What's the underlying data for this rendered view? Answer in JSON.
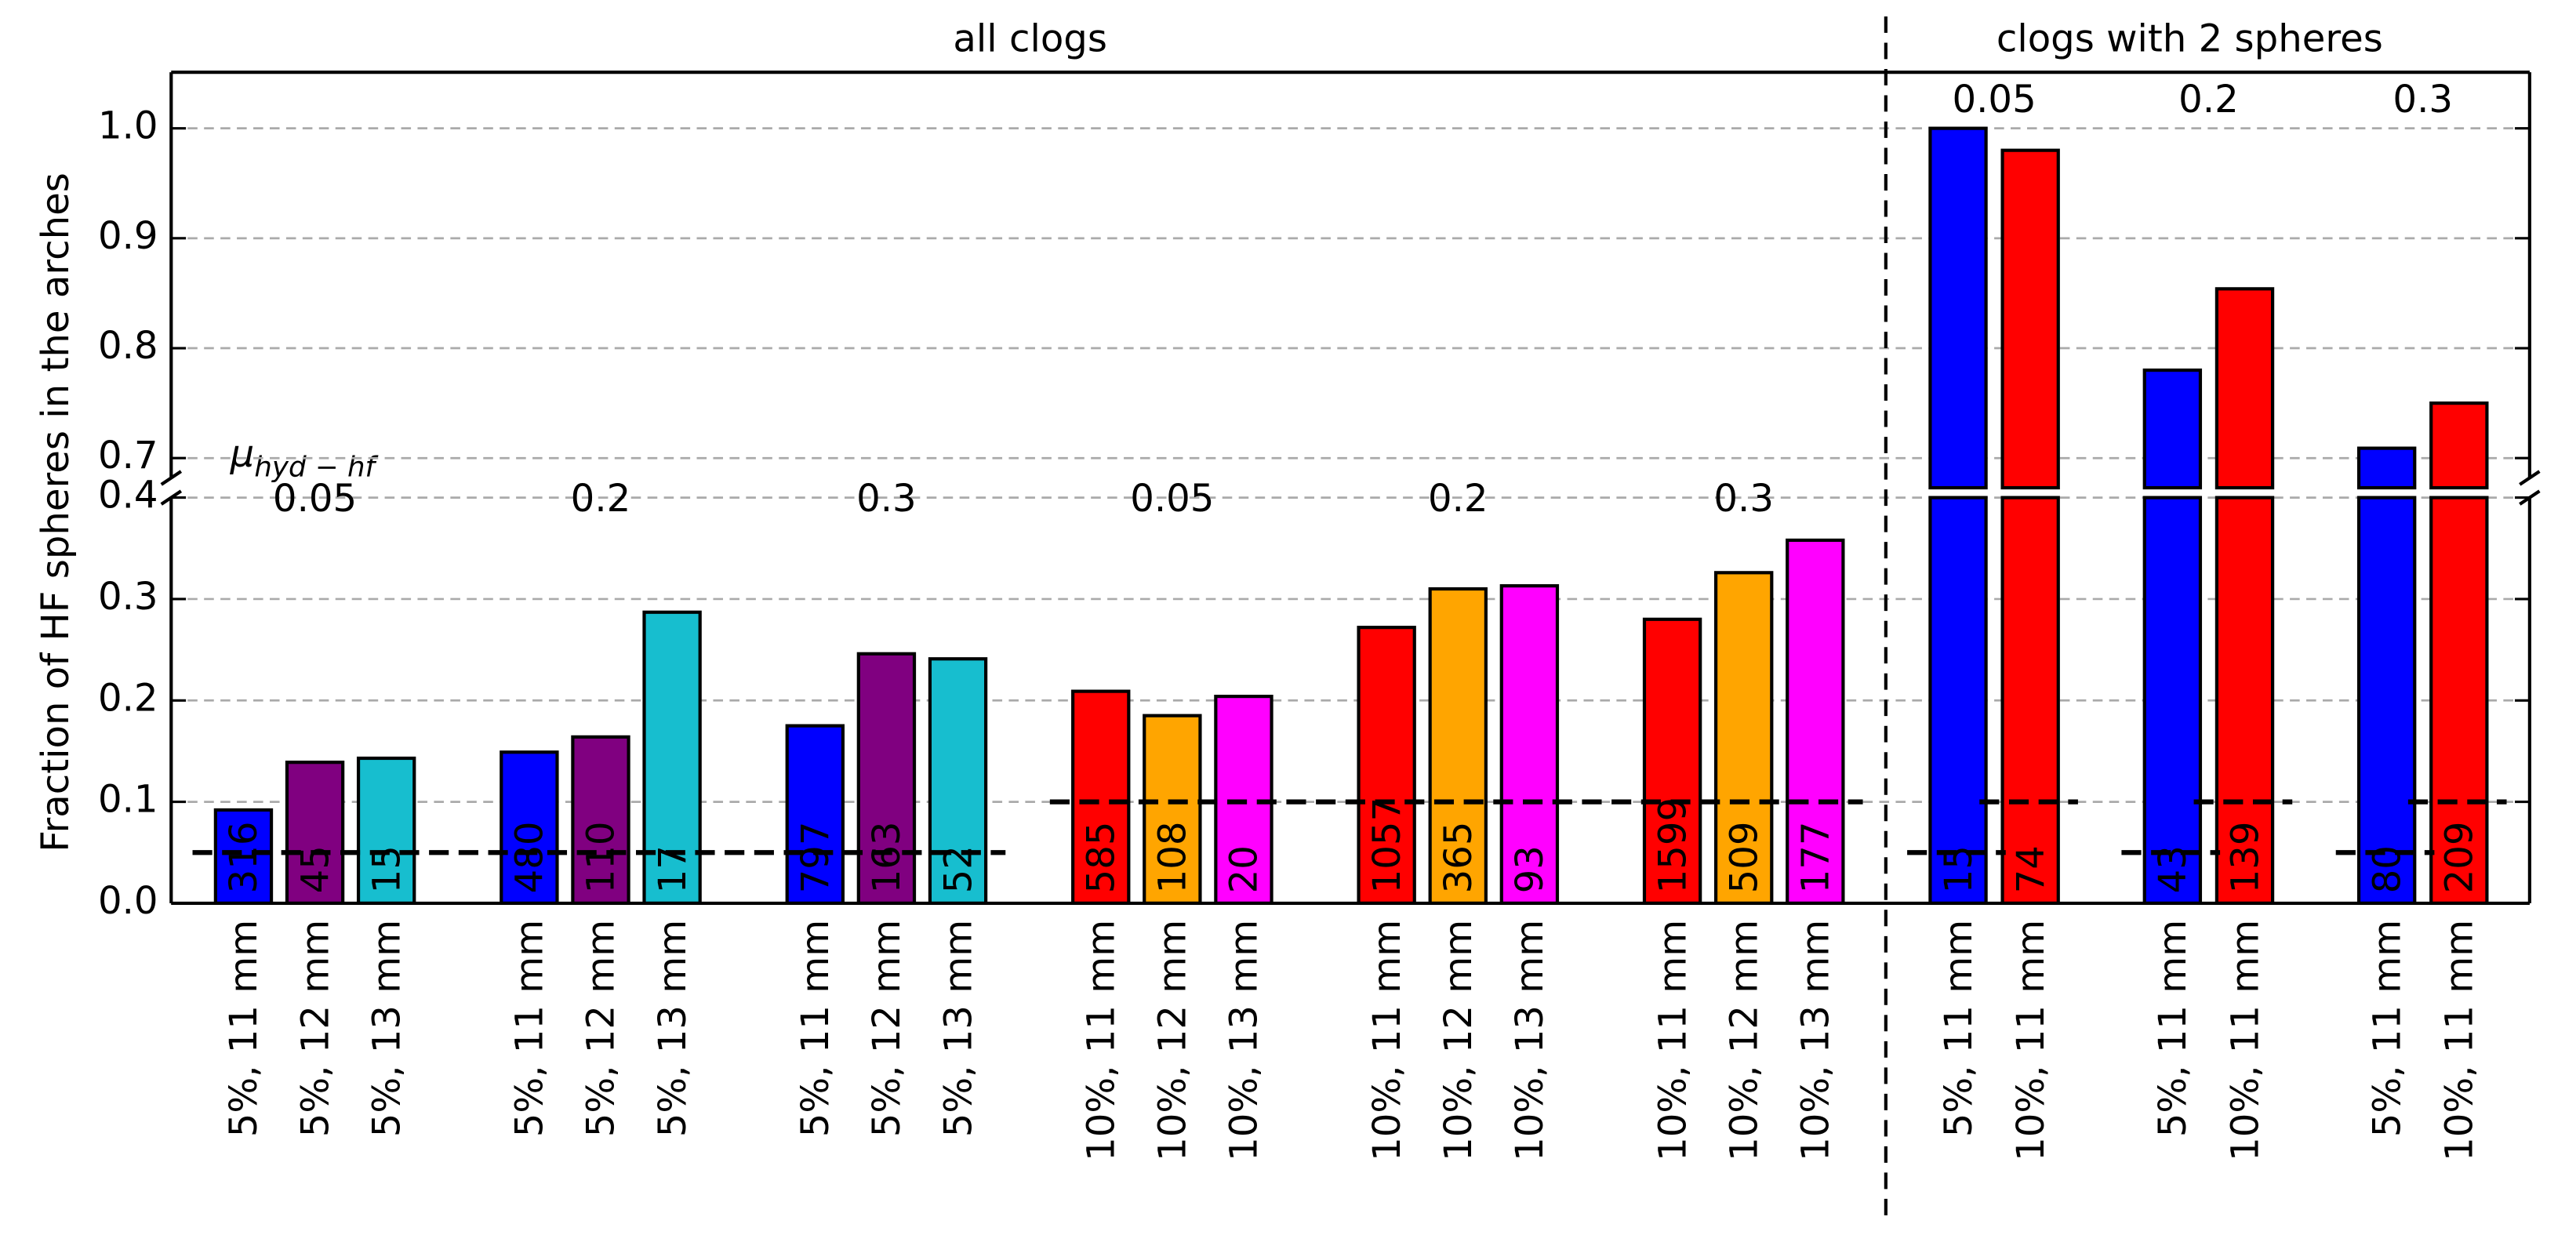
{
  "chart_data": {
    "type": "bar",
    "ylabel": "Fraction of HF spheres in the arches",
    "annotation": {
      "symbol": "μ",
      "subscript": "hyd − hf"
    },
    "ylim": [
      0,
      0.4
    ],
    "yticks": [
      {
        "value": 0,
        "label": "0.0"
      },
      0.1,
      0.2,
      0.3,
      0.4
    ],
    "ylim_upper": [
      0.682,
      1.051
    ],
    "yticks_upper": [
      0.7,
      0.8,
      0.9,
      {
        "value": 1,
        "label": "1.0"
      }
    ],
    "grid": true,
    "sections": [
      {
        "title": "all clogs",
        "groups": [
          {
            "label": "0.05",
            "categories": [
              "5%, 11 mm",
              "5%, 12 mm",
              "5%, 13 mm"
            ],
            "values": [
              0.092,
              0.139,
              0.143
            ],
            "colors": [
              "#0000ff",
              "#800080",
              "#17becf"
            ],
            "counts": [
              316,
              45,
              15
            ],
            "reference": [
              0.05,
              0.05,
              0.05
            ]
          },
          {
            "label": "0.2",
            "categories": [
              "5%, 11 mm",
              "5%, 12 mm",
              "5%, 13 mm"
            ],
            "values": [
              0.149,
              0.164,
              0.287
            ],
            "colors": [
              "#0000ff",
              "#800080",
              "#17becf"
            ],
            "counts": [
              480,
              110,
              17
            ],
            "reference": [
              0.05,
              0.05,
              0.05
            ]
          },
          {
            "label": "0.3",
            "categories": [
              "5%, 11 mm",
              "5%, 12 mm",
              "5%, 13 mm"
            ],
            "values": [
              0.175,
              0.246,
              0.241
            ],
            "colors": [
              "#0000ff",
              "#800080",
              "#17becf"
            ],
            "counts": [
              797,
              163,
              52
            ],
            "reference": [
              0.05,
              0.05,
              0.05
            ]
          },
          {
            "label": "0.05",
            "categories": [
              "10%, 11 mm",
              "10%, 12 mm",
              "10%, 13 mm"
            ],
            "values": [
              0.209,
              0.185,
              0.204
            ],
            "colors": [
              "#ff0000",
              "#ffa500",
              "#ff00ff"
            ],
            "counts": [
              585,
              108,
              20
            ],
            "reference": [
              0.1,
              0.1,
              0.1
            ]
          },
          {
            "label": "0.2",
            "categories": [
              "10%, 11 mm",
              "10%, 12 mm",
              "10%, 13 mm"
            ],
            "values": [
              0.272,
              0.31,
              0.313
            ],
            "colors": [
              "#ff0000",
              "#ffa500",
              "#ff00ff"
            ],
            "counts": [
              1057,
              365,
              93
            ],
            "reference": [
              0.1,
              0.1,
              0.1
            ]
          },
          {
            "label": "0.3",
            "categories": [
              "10%, 11 mm",
              "10%, 12 mm",
              "10%, 13 mm"
            ],
            "values": [
              0.28,
              0.326,
              0.358
            ],
            "colors": [
              "#ff0000",
              "#ffa500",
              "#ff00ff"
            ],
            "counts": [
              1599,
              509,
              177
            ],
            "reference": [
              0.1,
              0.1,
              0.1
            ]
          }
        ]
      },
      {
        "title": "clogs with 2 spheres",
        "groups": [
          {
            "label": "0.05",
            "categories": [
              "5%, 11 mm",
              "10%, 11 mm"
            ],
            "values": [
              1.0,
              0.98
            ],
            "colors": [
              "#0000ff",
              "#ff0000"
            ],
            "counts": [
              15,
              74
            ],
            "reference": [
              0.05,
              0.1
            ]
          },
          {
            "label": "0.2",
            "categories": [
              "5%, 11 mm",
              "10%, 11 mm"
            ],
            "values": [
              0.78,
              0.854
            ],
            "colors": [
              "#0000ff",
              "#ff0000"
            ],
            "counts": [
              43,
              139
            ],
            "reference": [
              0.05,
              0.1
            ]
          },
          {
            "label": "0.3",
            "categories": [
              "5%, 11 mm",
              "10%, 11 mm"
            ],
            "values": [
              0.709,
              0.75
            ],
            "colors": [
              "#0000ff",
              "#ff0000"
            ],
            "counts": [
              80,
              209
            ],
            "reference": [
              0.05,
              0.1
            ]
          }
        ]
      }
    ]
  }
}
